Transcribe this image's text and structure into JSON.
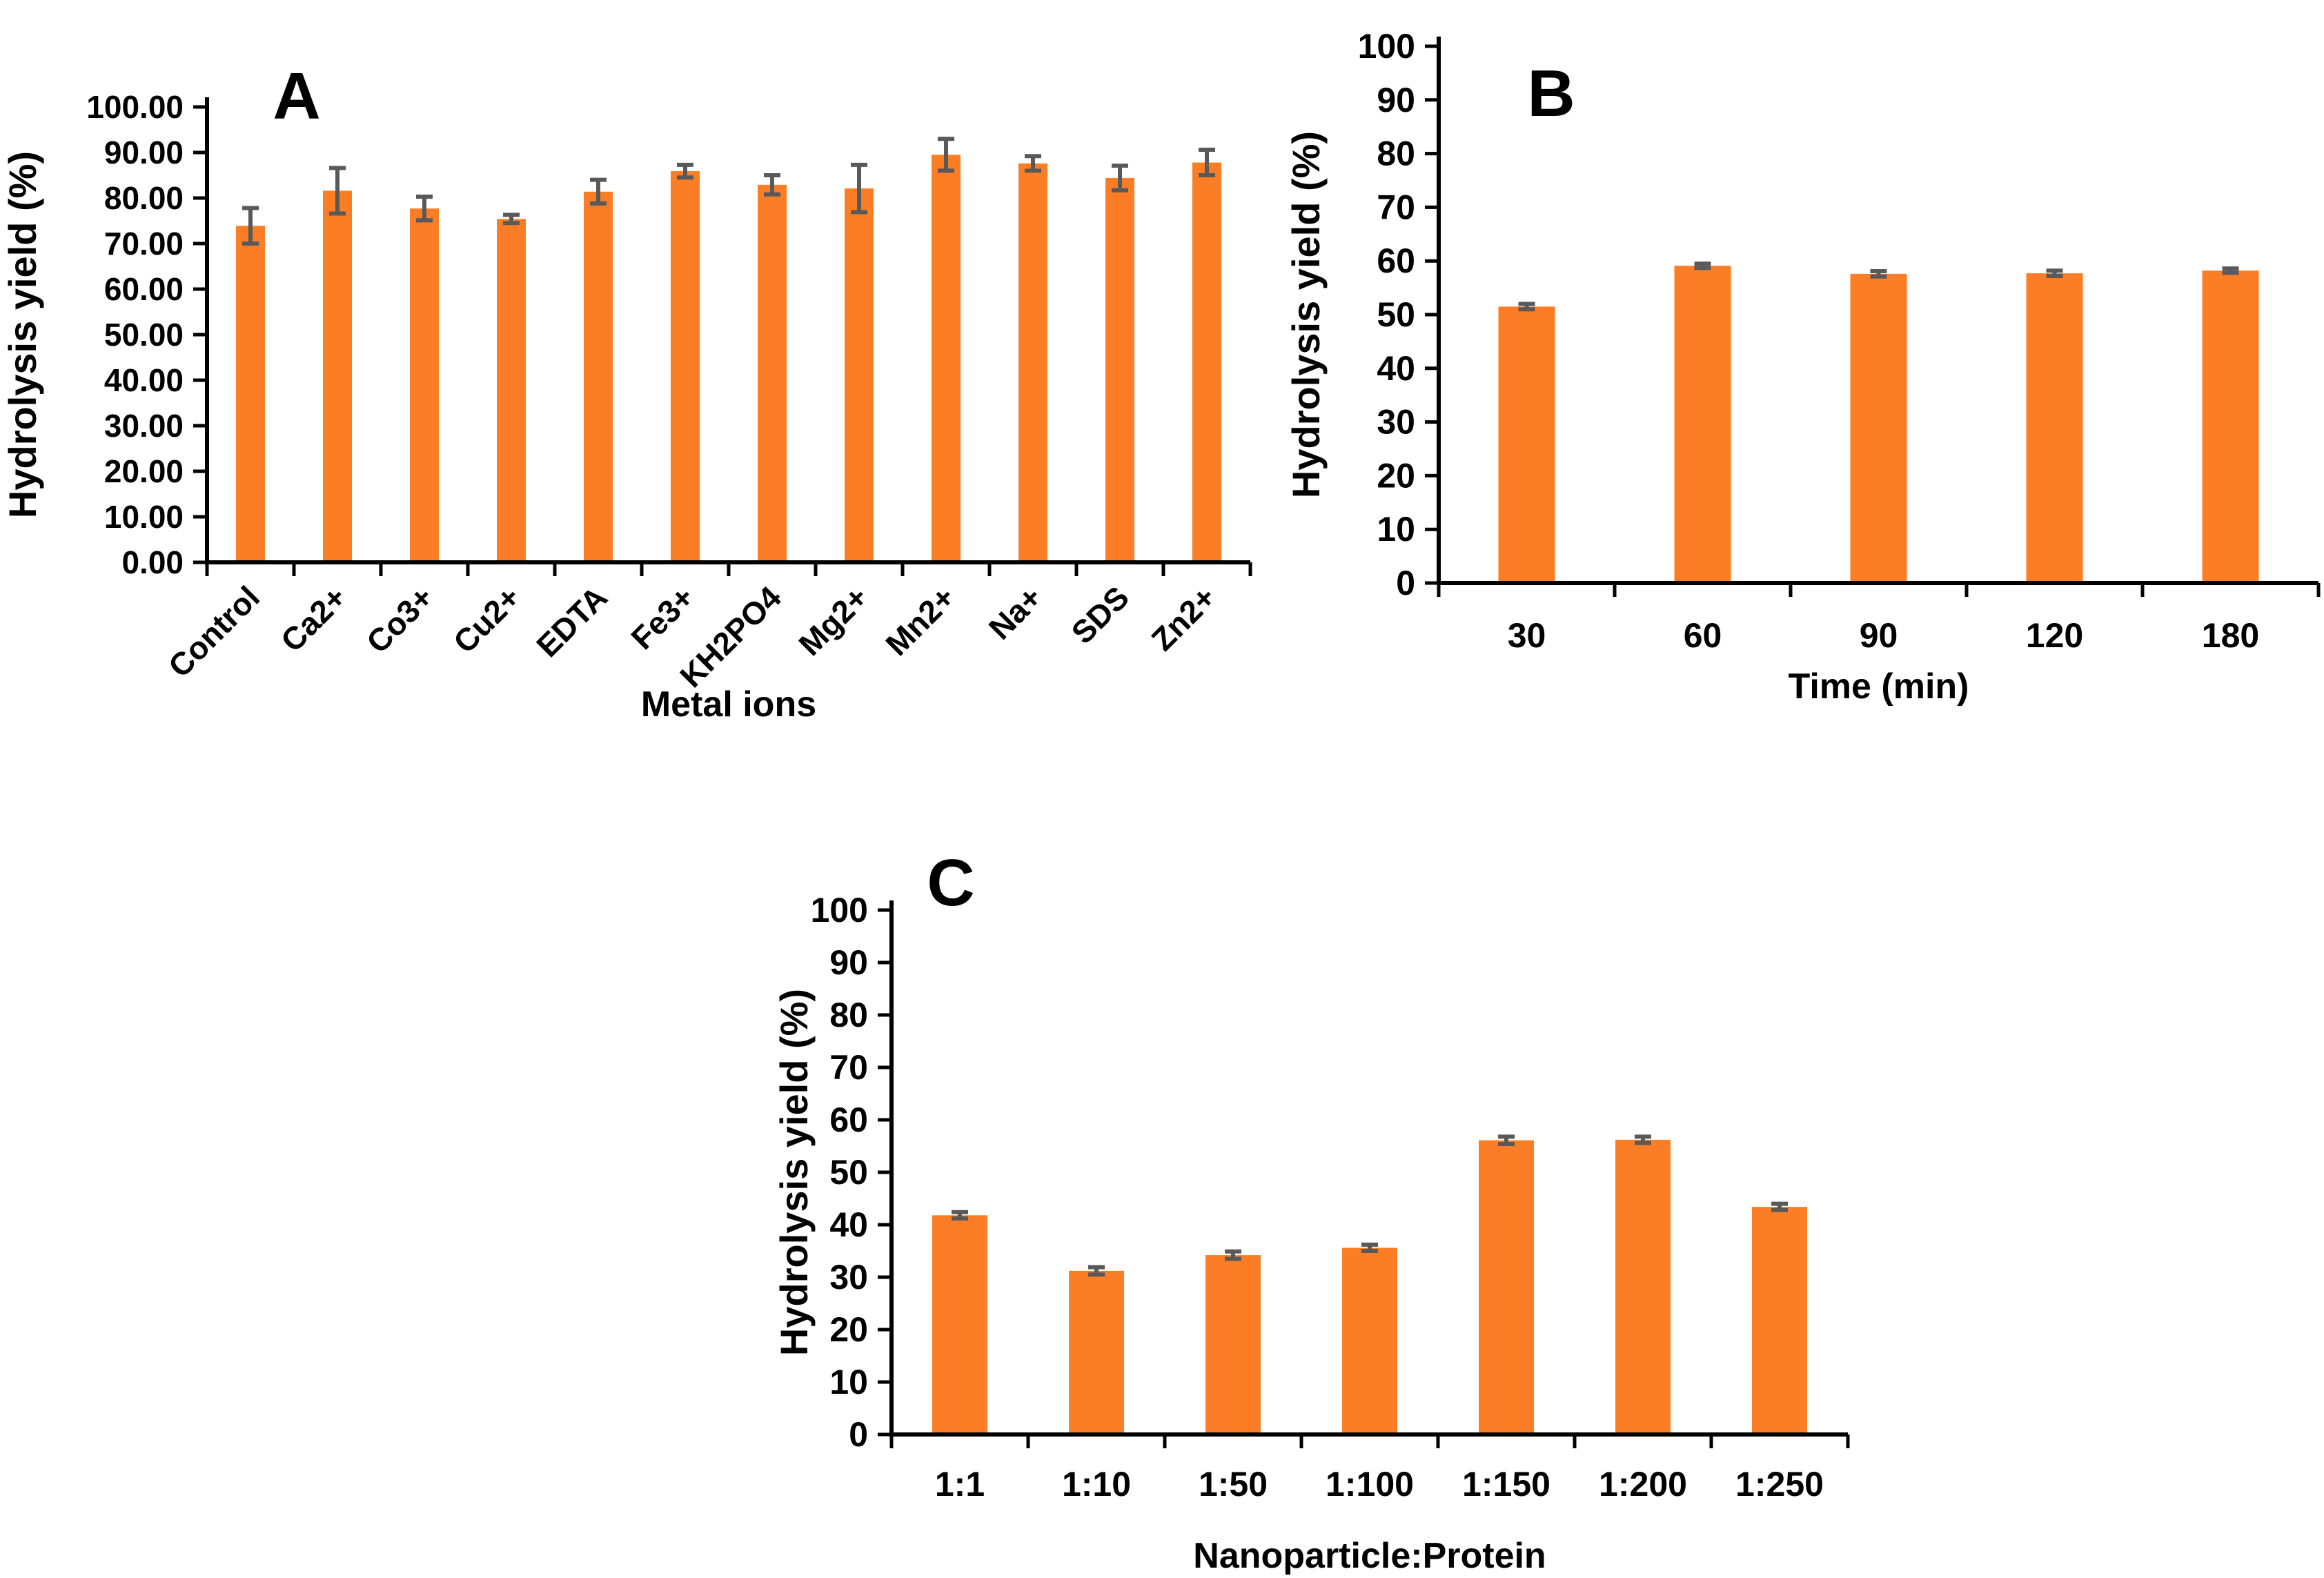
{
  "figure": {
    "background": "#ffffff",
    "bar_color": "#FB7D26",
    "error_color": "#595959",
    "axis_color": "#000000"
  },
  "chart_data": [
    {
      "id": "A",
      "type": "bar",
      "panel": "A",
      "ylabel": "Hydrolysis yield  (%)",
      "xlabel": "Metal ions",
      "ylim": [
        0,
        100
      ],
      "ytick_step": 10,
      "grid": false,
      "legend": null,
      "x_tick_rotation": 45,
      "ytick_labels": [
        "0.00",
        "10.00",
        "20.00",
        "30.00",
        "40.00",
        "50.00",
        "60.00",
        "70.00",
        "80.00",
        "90.00",
        "100.00"
      ],
      "categories": [
        "Control",
        "Ca2+",
        "Co3+",
        "Cu2+",
        "EDTA",
        "Fe3+",
        "KH2PO4",
        "Mg2+",
        "Mn2+",
        "Na+",
        "SDS",
        "Zn2+"
      ],
      "values": [
        73.9,
        81.6,
        77.7,
        75.4,
        81.4,
        85.9,
        82.9,
        82.1,
        89.5,
        87.6,
        84.4,
        87.8
      ],
      "errors": [
        3.9,
        5.0,
        2.6,
        0.9,
        2.6,
        1.4,
        2.1,
        5.2,
        3.5,
        1.6,
        2.7,
        2.8
      ]
    },
    {
      "id": "B",
      "type": "bar",
      "panel": "B",
      "ylabel": "Hydrolysis yield  (%)",
      "xlabel": "Time (min)",
      "ylim": [
        0,
        100
      ],
      "ytick_step": 10,
      "grid": false,
      "legend": null,
      "x_tick_rotation": 0,
      "ytick_labels": [
        "0",
        "10",
        "20",
        "30",
        "40",
        "50",
        "60",
        "70",
        "80",
        "90",
        "100"
      ],
      "categories": [
        "30",
        "60",
        "90",
        "120",
        "180"
      ],
      "values": [
        51.5,
        59.1,
        57.6,
        57.7,
        58.2
      ],
      "errors": [
        0.5,
        0.4,
        0.5,
        0.5,
        0.4
      ]
    },
    {
      "id": "C",
      "type": "bar",
      "panel": "C",
      "ylabel": "Hydrolysis yield  (%)",
      "xlabel": "Nanoparticle:Protein",
      "ylim": [
        0,
        100
      ],
      "ytick_step": 10,
      "grid": false,
      "legend": null,
      "x_tick_rotation": 0,
      "ytick_labels": [
        "0",
        "10",
        "20",
        "30",
        "40",
        "50",
        "60",
        "70",
        "80",
        "90",
        "100"
      ],
      "categories": [
        "1:1",
        "1:10",
        "1:50",
        "1:100",
        "1:150",
        "1:200",
        "1:250"
      ],
      "values": [
        41.8,
        31.2,
        34.2,
        35.6,
        56.1,
        56.2,
        43.4
      ],
      "errors": [
        0.6,
        0.7,
        0.7,
        0.6,
        0.7,
        0.6,
        0.6
      ]
    }
  ]
}
